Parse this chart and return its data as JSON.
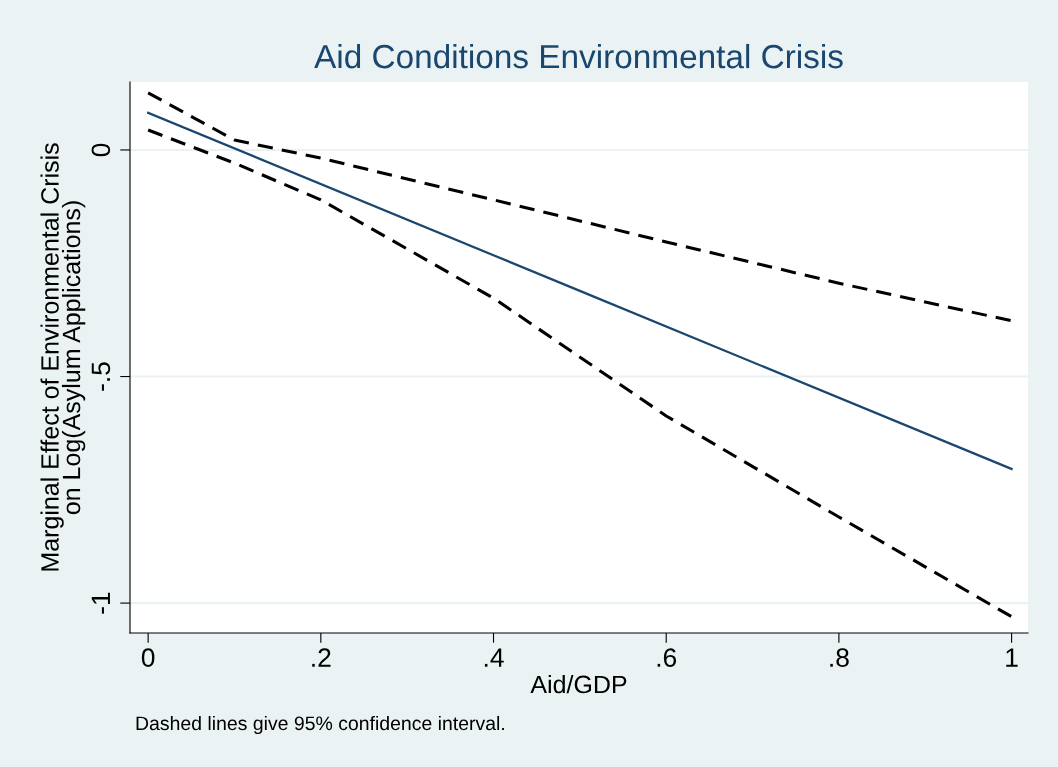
{
  "chart_data": {
    "type": "line",
    "title": "Aid Conditions Environmental Crisis",
    "xlabel": "Aid/GDP",
    "ylabel": "Marginal Effect of Environmental Crisis\non Log(Asylum Applications)",
    "series": [
      {
        "color": "#1a476f",
        "line_style": "solid",
        "x": [
          0,
          0.5,
          1
        ],
        "values": [
          0.082,
          -0.311,
          -0.704
        ]
      },
      {
        "color": "#000000",
        "line_style": "dashed",
        "x": [
          0,
          0.1,
          0.2,
          0.4,
          0.6,
          0.8,
          1
        ],
        "values": [
          0.126,
          0.022,
          -0.018,
          -0.11,
          -0.203,
          -0.294,
          -0.377
        ]
      },
      {
        "color": "#000000",
        "line_style": "dashed",
        "x": [
          0,
          0.1,
          0.2,
          0.4,
          0.6,
          0.8,
          1
        ],
        "values": [
          0.044,
          -0.029,
          -0.11,
          -0.327,
          -0.587,
          -0.81,
          -1.03
        ]
      }
    ],
    "xlim": [
      -0.021,
      1.019
    ],
    "ylim": [
      -1.066,
      0.15
    ],
    "xticks": [
      {
        "value": 0,
        "label": "0"
      },
      {
        "value": 0.2,
        "label": ".2"
      },
      {
        "value": 0.4,
        "label": ".4"
      },
      {
        "value": 0.6,
        "label": ".6"
      },
      {
        "value": 0.8,
        "label": ".8"
      },
      {
        "value": 1,
        "label": "1"
      }
    ],
    "yticks": [
      {
        "value": -1,
        "label": "-1"
      },
      {
        "value": -0.5,
        "label": "-.5"
      },
      {
        "value": 0,
        "label": "0"
      }
    ],
    "grid": "y",
    "legend": false,
    "annotations": [
      "Dashed lines give 95% confidence interval."
    ]
  }
}
